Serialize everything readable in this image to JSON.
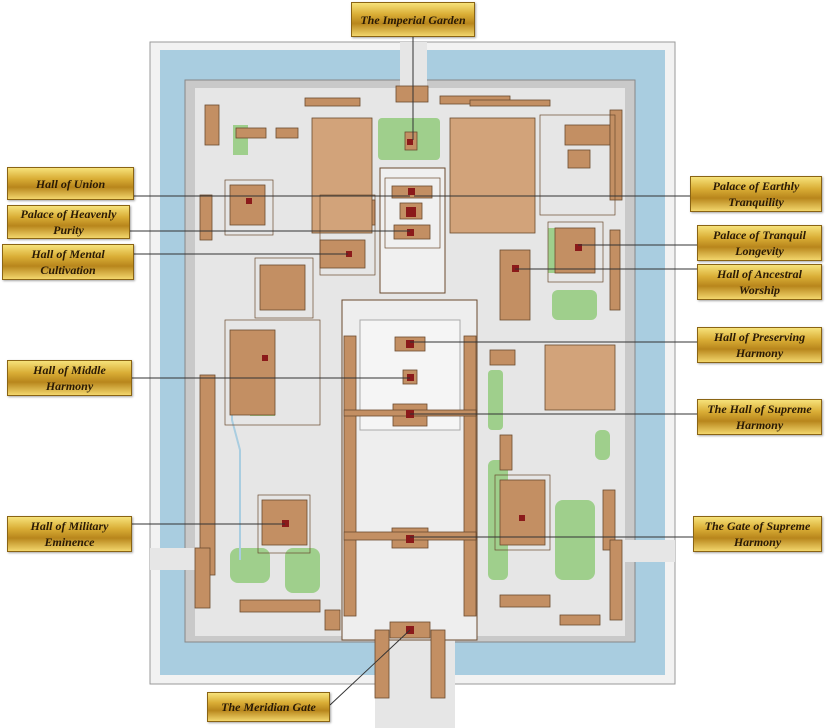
{
  "labels": {
    "imperial_garden": "The Imperial Garden",
    "hall_of_union": "Hall of Union",
    "palace_heavenly_purity": "Palace of Heavenly Purity",
    "hall_mental_cultivation": "Hall of Mental Cultivation",
    "hall_middle_harmony": "Hall of Middle Harmony",
    "hall_military_eminence": "Hall of Military Eminence",
    "meridian_gate": "The Meridian Gate",
    "palace_earthly_tranquility": "Palace of Earthly Tranquility",
    "palace_tranquil_longevity": "Palace of Tranquil Longevity",
    "hall_ancestral_worship": "Hall of Ancestral Worship",
    "hall_preserving_harmony": "Hall of Preserving Harmony",
    "hall_supreme_harmony": "The Hall of Supreme Harmony",
    "gate_supreme_harmony": "The Gate of Supreme Harmony"
  },
  "colors": {
    "moat": "#a9cde0",
    "wall": "#c8c8c8",
    "ground": "#e8e8e8",
    "building": "#c38f63",
    "building_outline": "#6b4a2e",
    "garden": "#9fcf8c",
    "marker": "#8b1a1a",
    "plaque_gold": "#d9ad35"
  }
}
